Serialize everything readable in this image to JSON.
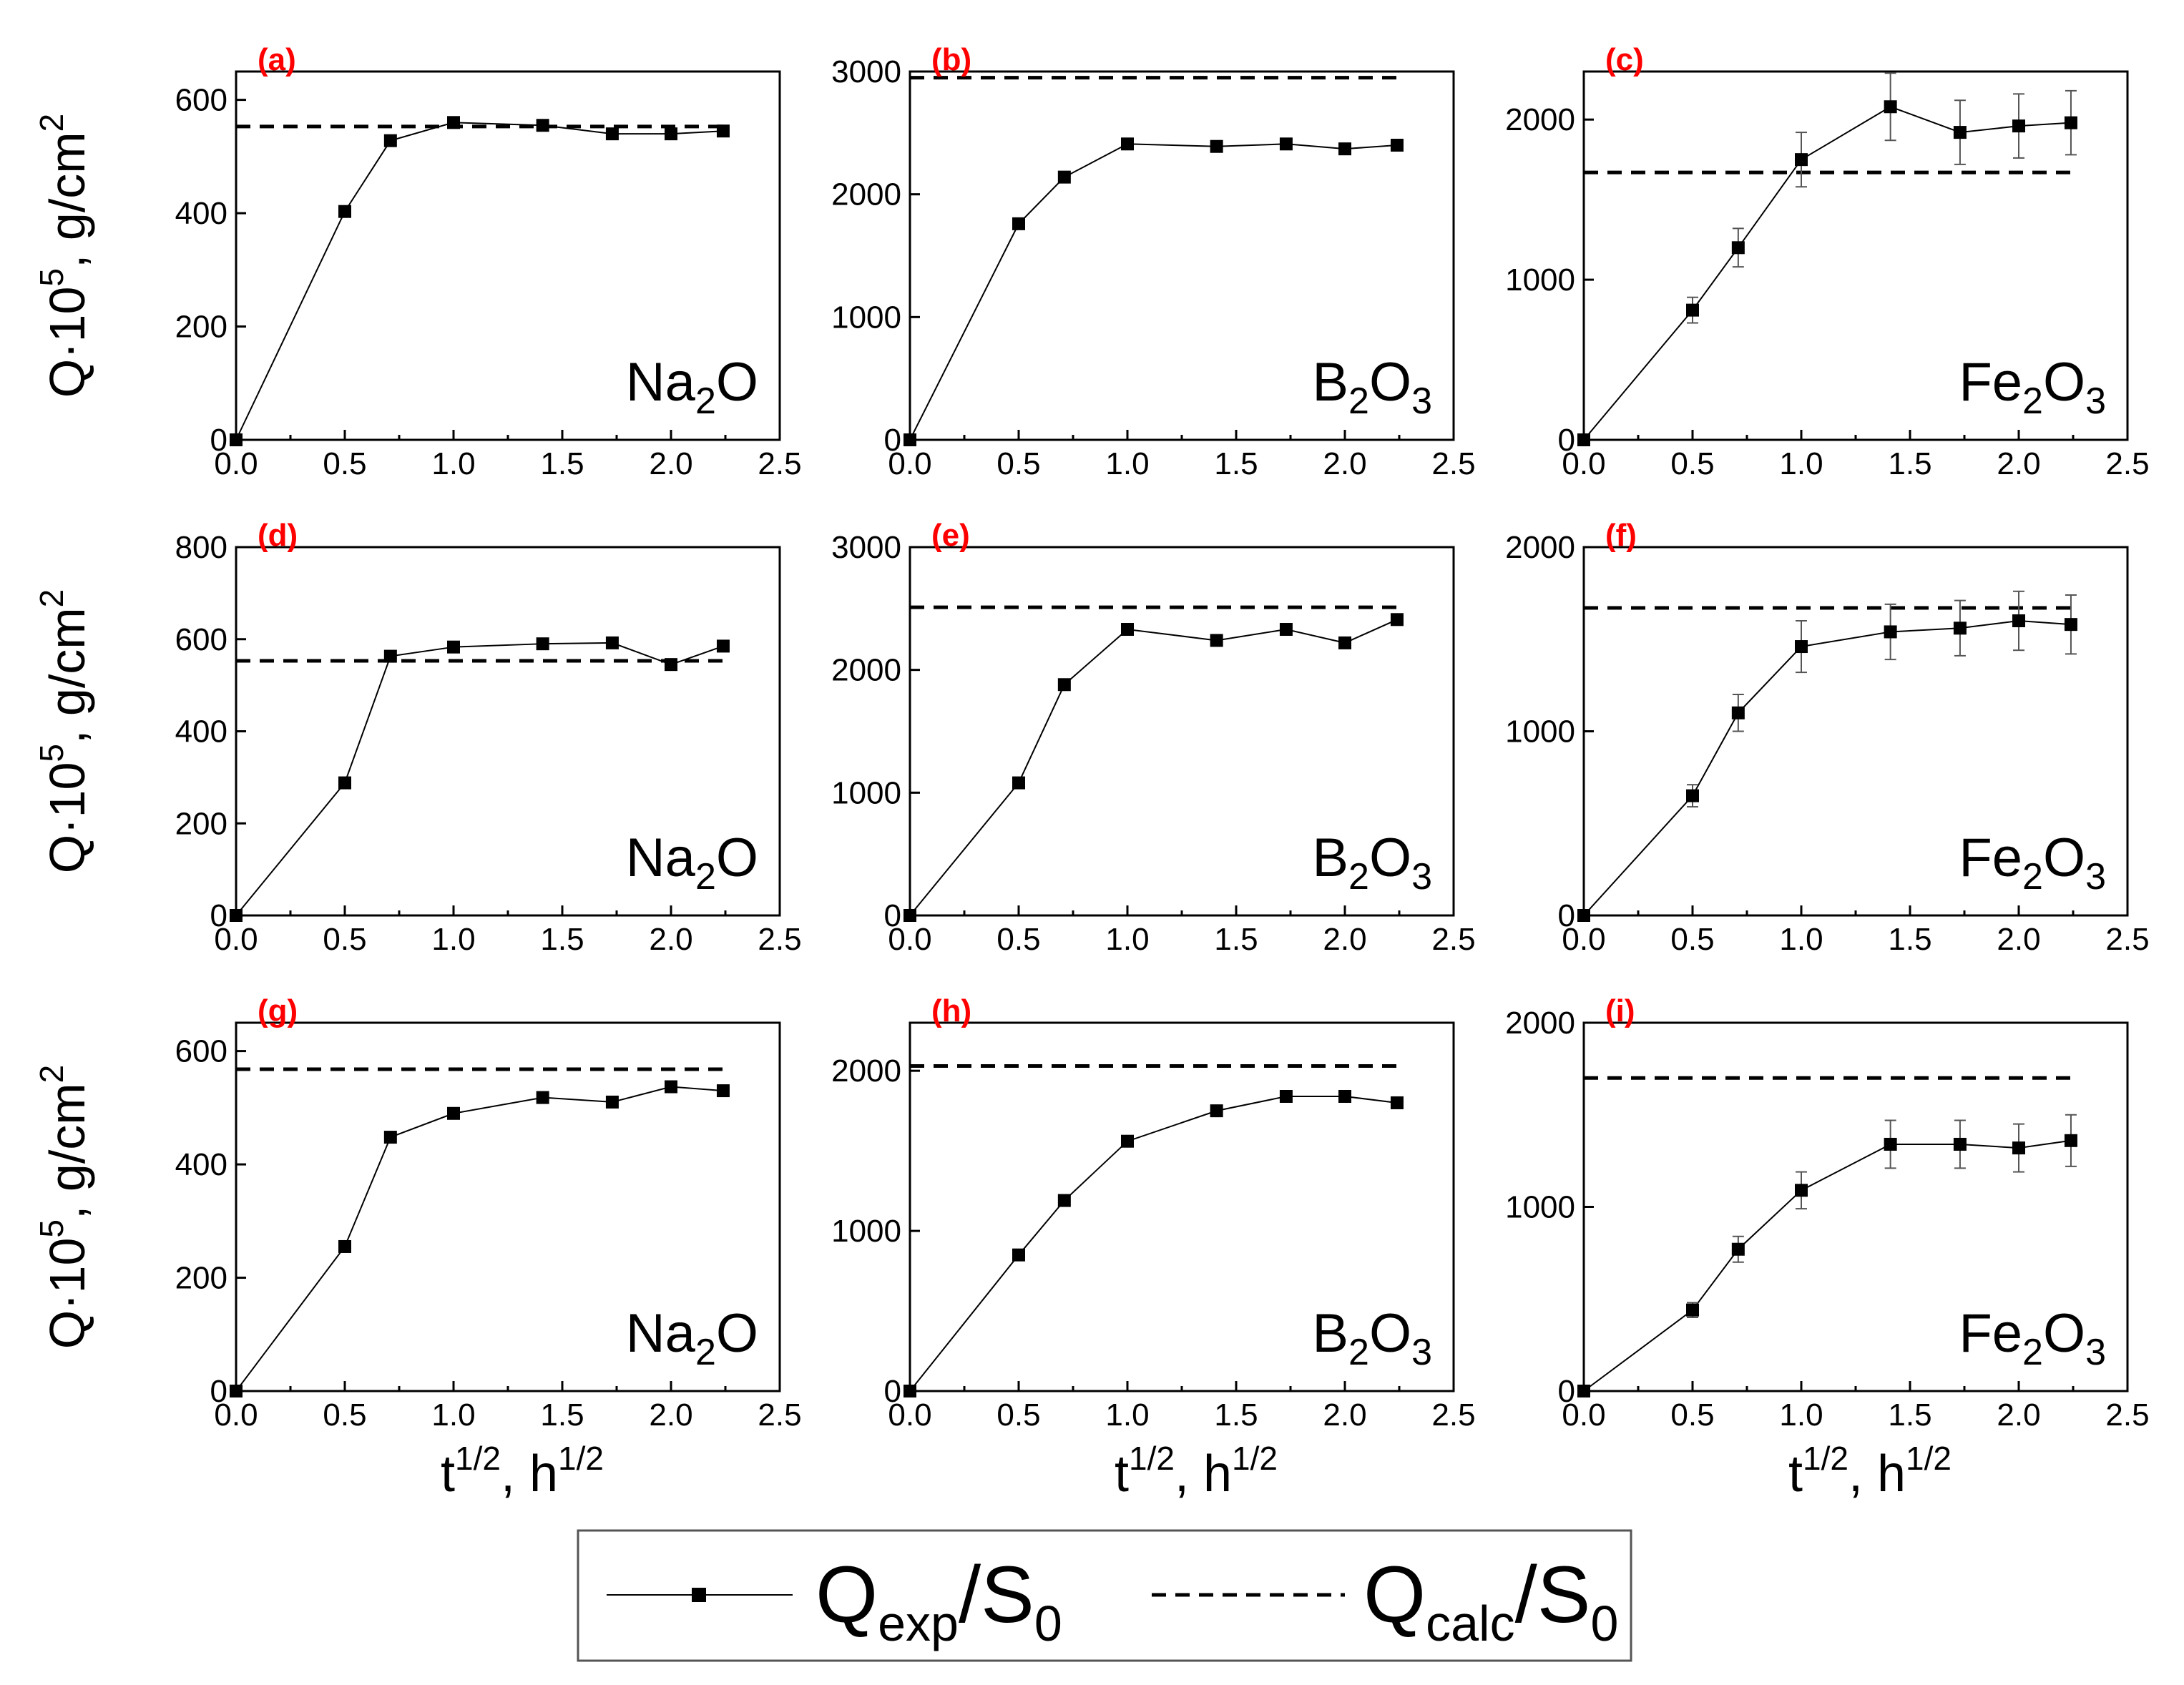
{
  "figure": {
    "x_axis_label": "t",
    "x_axis_label_sup": "1/2",
    "x_axis_label_mid": ", h",
    "x_axis_label_sup2": "1/2",
    "y_axis_label_pre": "Q·10",
    "y_axis_label_sup": "5",
    "y_axis_label_mid": ", g/cm",
    "y_axis_label_sup2": "2",
    "label_color": "#ff0000",
    "line_color": "#000000",
    "legend": {
      "exp_label": "Q",
      "exp_sub": "exp",
      "exp_tail": "/S",
      "exp_sub2": "0",
      "calc_label": "Q",
      "calc_sub": "calc",
      "calc_tail": "/S",
      "calc_sub2": "0"
    }
  },
  "chart_data": [
    {
      "type": "line",
      "panel": "(a)",
      "oxide": "Na",
      "oxide_sub": "2",
      "oxide_tail": "O",
      "xlim": [
        0,
        2.5
      ],
      "ylim": [
        0,
        650
      ],
      "xticks": [
        "0.0",
        "0.5",
        "1.0",
        "1.5",
        "2.0",
        "2.5"
      ],
      "yticks": [
        0,
        200,
        400,
        600
      ],
      "series": [
        {
          "name": "Qexp/S0",
          "x": [
            0,
            0.5,
            0.71,
            1.0,
            1.41,
            1.73,
            2.0,
            2.24
          ],
          "y": [
            0,
            403,
            528,
            560,
            555,
            540,
            540,
            545
          ],
          "err": []
        }
      ],
      "calc": {
        "name": "Qcalc/S0",
        "y": 553,
        "x_end": 2.24
      }
    },
    {
      "type": "line",
      "panel": "(b)",
      "oxide": "B",
      "oxide_sub": "2",
      "oxide_tail": "O",
      "oxide_sub2": "3",
      "xlim": [
        0,
        2.5
      ],
      "ylim": [
        0,
        3000
      ],
      "xticks": [
        "0.0",
        "0.5",
        "1.0",
        "1.5",
        "2.0",
        "2.5"
      ],
      "yticks": [
        0,
        1000,
        2000,
        3000
      ],
      "series": [
        {
          "name": "Qexp/S0",
          "x": [
            0,
            0.5,
            0.71,
            1.0,
            1.41,
            1.73,
            2.0,
            2.24
          ],
          "y": [
            0,
            1760,
            2140,
            2410,
            2390,
            2410,
            2370,
            2400
          ],
          "err": []
        }
      ],
      "calc": {
        "name": "Qcalc/S0",
        "y": 2950,
        "x_end": 2.24
      }
    },
    {
      "type": "line",
      "panel": "(c)",
      "oxide": "Fe",
      "oxide_sub": "2",
      "oxide_tail": "O",
      "oxide_sub2": "3",
      "xlim": [
        0,
        2.5
      ],
      "ylim": [
        0,
        2300
      ],
      "xticks": [
        "0.0",
        "0.5",
        "1.0",
        "1.5",
        "2.0",
        "2.5"
      ],
      "yticks": [
        0,
        1000,
        2000
      ],
      "series": [
        {
          "name": "Qexp/S0",
          "x": [
            0,
            0.5,
            0.71,
            1.0,
            1.41,
            1.73,
            2.0,
            2.24
          ],
          "y": [
            0,
            810,
            1200,
            1750,
            2080,
            1920,
            1960,
            1980
          ],
          "err": [
            0,
            80,
            120,
            170,
            210,
            200,
            200,
            200
          ]
        }
      ],
      "calc": {
        "name": "Qcalc/S0",
        "y": 1670,
        "x_end": 2.24
      }
    },
    {
      "type": "line",
      "panel": "(d)",
      "oxide": "Na",
      "oxide_sub": "2",
      "oxide_tail": "O",
      "xlim": [
        0,
        2.5
      ],
      "ylim": [
        0,
        800
      ],
      "xticks": [
        "0.0",
        "0.5",
        "1.0",
        "1.5",
        "2.0",
        "2.5"
      ],
      "yticks": [
        0,
        200,
        400,
        600,
        800
      ],
      "series": [
        {
          "name": "Qexp/S0",
          "x": [
            0,
            0.5,
            0.71,
            1.0,
            1.41,
            1.73,
            2.0,
            2.24
          ],
          "y": [
            0,
            288,
            563,
            583,
            590,
            592,
            545,
            585
          ],
          "err": []
        }
      ],
      "calc": {
        "name": "Qcalc/S0",
        "y": 553,
        "x_end": 2.24
      }
    },
    {
      "type": "line",
      "panel": "(e)",
      "oxide": "B",
      "oxide_sub": "2",
      "oxide_tail": "O",
      "oxide_sub2": "3",
      "xlim": [
        0,
        2.5
      ],
      "ylim": [
        0,
        3000
      ],
      "xticks": [
        "0.0",
        "0.5",
        "1.0",
        "1.5",
        "2.0",
        "2.5"
      ],
      "yticks": [
        0,
        1000,
        2000,
        3000
      ],
      "series": [
        {
          "name": "Qexp/S0",
          "x": [
            0,
            0.5,
            0.71,
            1.0,
            1.41,
            1.73,
            2.0,
            2.24
          ],
          "y": [
            0,
            1080,
            1880,
            2330,
            2240,
            2330,
            2220,
            2410
          ],
          "err": []
        }
      ],
      "calc": {
        "name": "Qcalc/S0",
        "y": 2510,
        "x_end": 2.24
      }
    },
    {
      "type": "line",
      "panel": "(f)",
      "oxide": "Fe",
      "oxide_sub": "2",
      "oxide_tail": "O",
      "oxide_sub2": "3",
      "xlim": [
        0,
        2.5
      ],
      "ylim": [
        0,
        2000
      ],
      "xticks": [
        "0.0",
        "0.5",
        "1.0",
        "1.5",
        "2.0",
        "2.5"
      ],
      "yticks": [
        0,
        1000,
        2000
      ],
      "series": [
        {
          "name": "Qexp/S0",
          "x": [
            0,
            0.5,
            0.71,
            1.0,
            1.41,
            1.73,
            2.0,
            2.24
          ],
          "y": [
            0,
            650,
            1100,
            1460,
            1540,
            1560,
            1600,
            1580
          ],
          "err": [
            0,
            60,
            100,
            140,
            150,
            150,
            160,
            160
          ]
        }
      ],
      "calc": {
        "name": "Qcalc/S0",
        "y": 1670,
        "x_end": 2.24
      }
    },
    {
      "type": "line",
      "panel": "(g)",
      "oxide": "Na",
      "oxide_sub": "2",
      "oxide_tail": "O",
      "xlim": [
        0,
        2.5
      ],
      "ylim": [
        0,
        650
      ],
      "xticks": [
        "0.0",
        "0.5",
        "1.0",
        "1.5",
        "2.0",
        "2.5"
      ],
      "yticks": [
        0,
        200,
        400,
        600
      ],
      "series": [
        {
          "name": "Qexp/S0",
          "x": [
            0,
            0.5,
            0.71,
            1.0,
            1.41,
            1.73,
            2.0,
            2.24
          ],
          "y": [
            0,
            255,
            448,
            490,
            518,
            510,
            537,
            530
          ],
          "err": []
        }
      ],
      "calc": {
        "name": "Qcalc/S0",
        "y": 568,
        "x_end": 2.24
      }
    },
    {
      "type": "line",
      "panel": "(h)",
      "oxide": "B",
      "oxide_sub": "2",
      "oxide_tail": "O",
      "oxide_sub2": "3",
      "xlim": [
        0,
        2.5
      ],
      "ylim": [
        0,
        2300
      ],
      "xticks": [
        "0.0",
        "0.5",
        "1.0",
        "1.5",
        "2.0",
        "2.5"
      ],
      "yticks": [
        0,
        1000,
        2000
      ],
      "series": [
        {
          "name": "Qexp/S0",
          "x": [
            0,
            0.5,
            0.71,
            1.0,
            1.41,
            1.73,
            2.0,
            2.24
          ],
          "y": [
            0,
            850,
            1190,
            1560,
            1750,
            1840,
            1840,
            1800
          ],
          "err": []
        }
      ],
      "calc": {
        "name": "Qcalc/S0",
        "y": 2030,
        "x_end": 2.24
      }
    },
    {
      "type": "line",
      "panel": "(i)",
      "oxide": "Fe",
      "oxide_sub": "2",
      "oxide_tail": "O",
      "oxide_sub2": "3",
      "xlim": [
        0,
        2.5
      ],
      "ylim": [
        0,
        2000
      ],
      "xticks": [
        "0.0",
        "0.5",
        "1.0",
        "1.5",
        "2.0",
        "2.5"
      ],
      "yticks": [
        0,
        1000,
        2000
      ],
      "series": [
        {
          "name": "Qexp/S0",
          "x": [
            0,
            0.5,
            0.71,
            1.0,
            1.41,
            1.73,
            2.0,
            2.24
          ],
          "y": [
            0,
            440,
            770,
            1090,
            1340,
            1340,
            1320,
            1360
          ],
          "err": [
            0,
            40,
            70,
            100,
            130,
            130,
            130,
            140
          ]
        }
      ],
      "calc": {
        "name": "Qcalc/S0",
        "y": 1700,
        "x_end": 2.24
      }
    }
  ]
}
